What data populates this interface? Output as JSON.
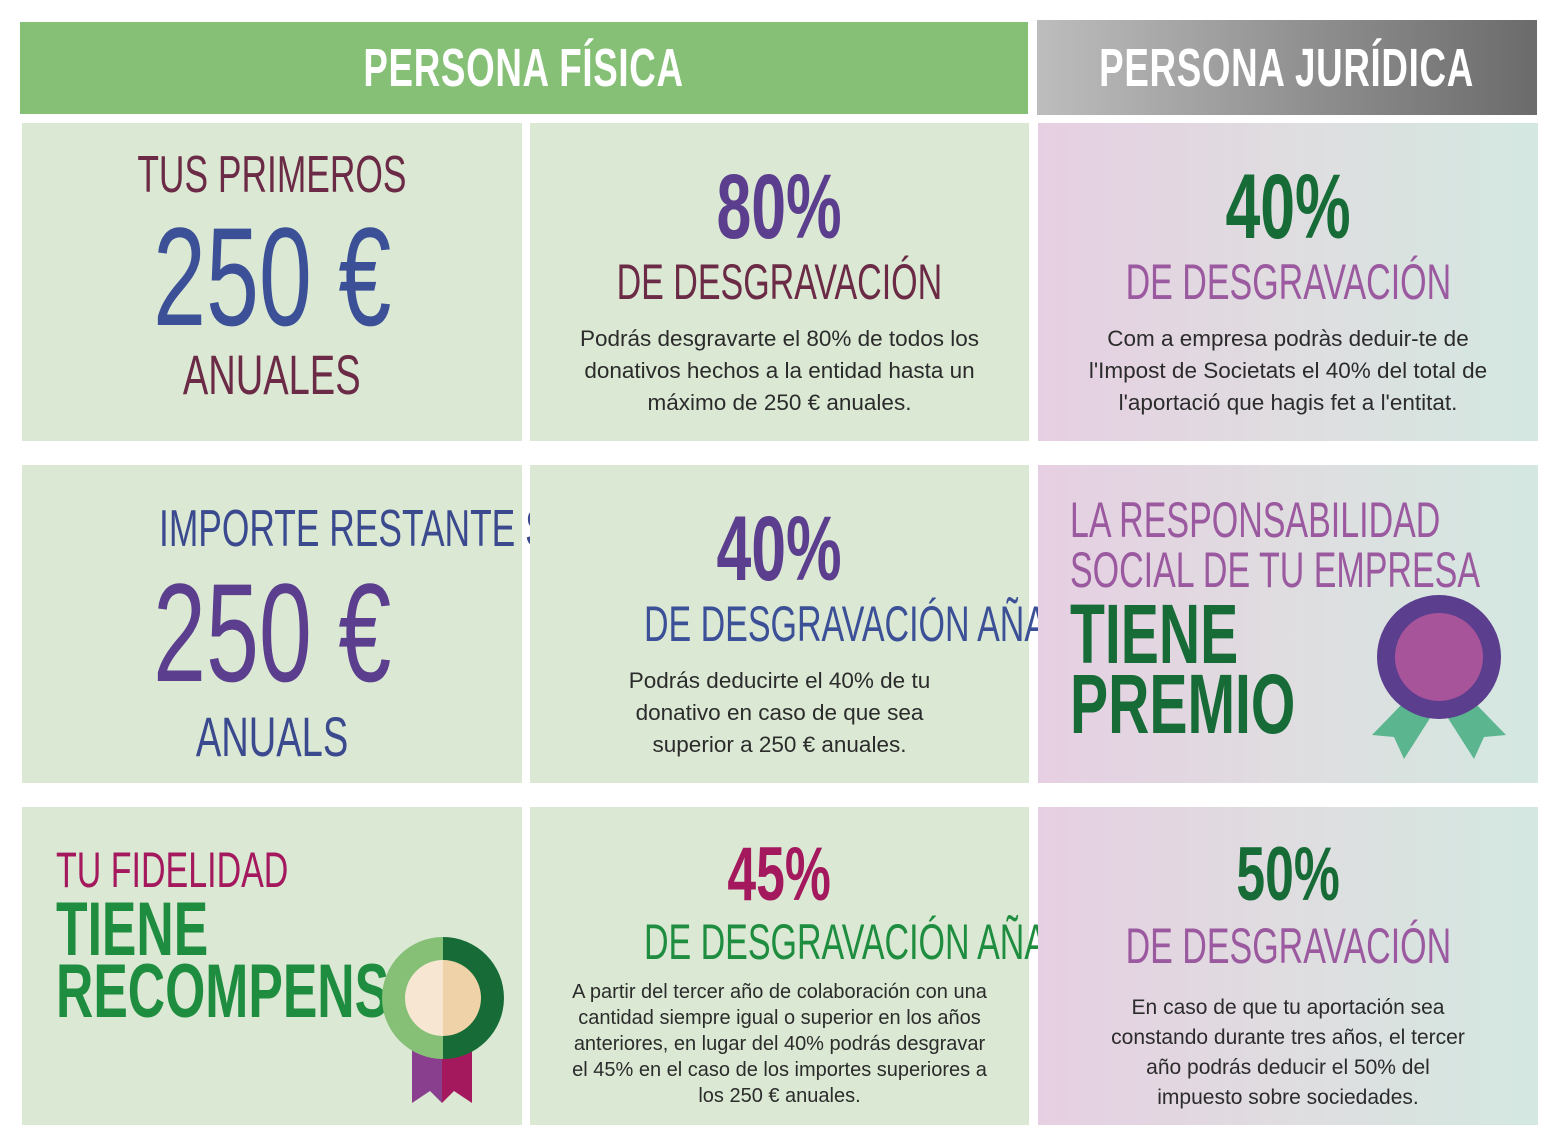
{
  "headers": {
    "fisica": "PERSONA FÍSICA",
    "juridica": "PERSONA JURÍDICA"
  },
  "row1": {
    "left": {
      "line1": "TUS PRIMEROS",
      "amount": "250 €",
      "line3": "ANUALES"
    },
    "mid": {
      "pct": "80%",
      "label": "DE DESGRAVACIÓN",
      "text": "Podrás desgravarte el 80% de todos los donativos hechos a la entidad hasta un máximo de 250 € anuales."
    },
    "right": {
      "pct": "40%",
      "label": "DE DESGRAVACIÓN",
      "text": "Com a empresa podràs deduir-te de l'Impost de Societats el 40% del total de l'aportació que hagis fet a l'entitat."
    }
  },
  "row2": {
    "left": {
      "line1": "IMPORTE RESTANTE SUPERIOR A",
      "amount": "250 €",
      "line3": "ANUALS"
    },
    "mid": {
      "pct": "40%",
      "label": "DE DESGRAVACIÓN AÑADIDA",
      "text": "Podrás deducirte el 40% de tu donativo en caso de que sea superior a 250 € anuales."
    },
    "right": {
      "line1": "LA RESPONSABILIDAD",
      "line2": "SOCIAL DE TU EMPRESA",
      "line3": "TIENE",
      "line4": "PREMIO",
      "icon": "award-badge-icon"
    }
  },
  "row3": {
    "left": {
      "line1": "TU FIDELIDAD",
      "line2": "TIENE",
      "line3": "RECOMPENSA",
      "icon": "medal-icon"
    },
    "mid": {
      "pct": "45%",
      "label": "DE DESGRAVACIÓN AÑADIDA",
      "text": "A partir del tercer año de colaboración con una cantidad siempre igual o superior en los años anteriores, en lugar del 40% podrás desgravar el 45% en el caso de los importes superiores a los 250 € anuales."
    },
    "right": {
      "pct": "50%",
      "label": "DE DESGRAVACIÓN",
      "text": "En caso de que tu aportación sea constando durante tres años, el tercer año podrás deducir el 50% del impuesto sobre sociedades."
    }
  },
  "colors": {
    "header_green": "#86c077",
    "header_gray": "#8f8f8f",
    "cell_green": "#dbe9d4",
    "purple": "#5b3e8d",
    "dark_green": "#176b37",
    "maroon": "#6b2a45",
    "blue": "#3b5096",
    "mauve": "#9b5aa0",
    "magenta": "#a4195e"
  }
}
